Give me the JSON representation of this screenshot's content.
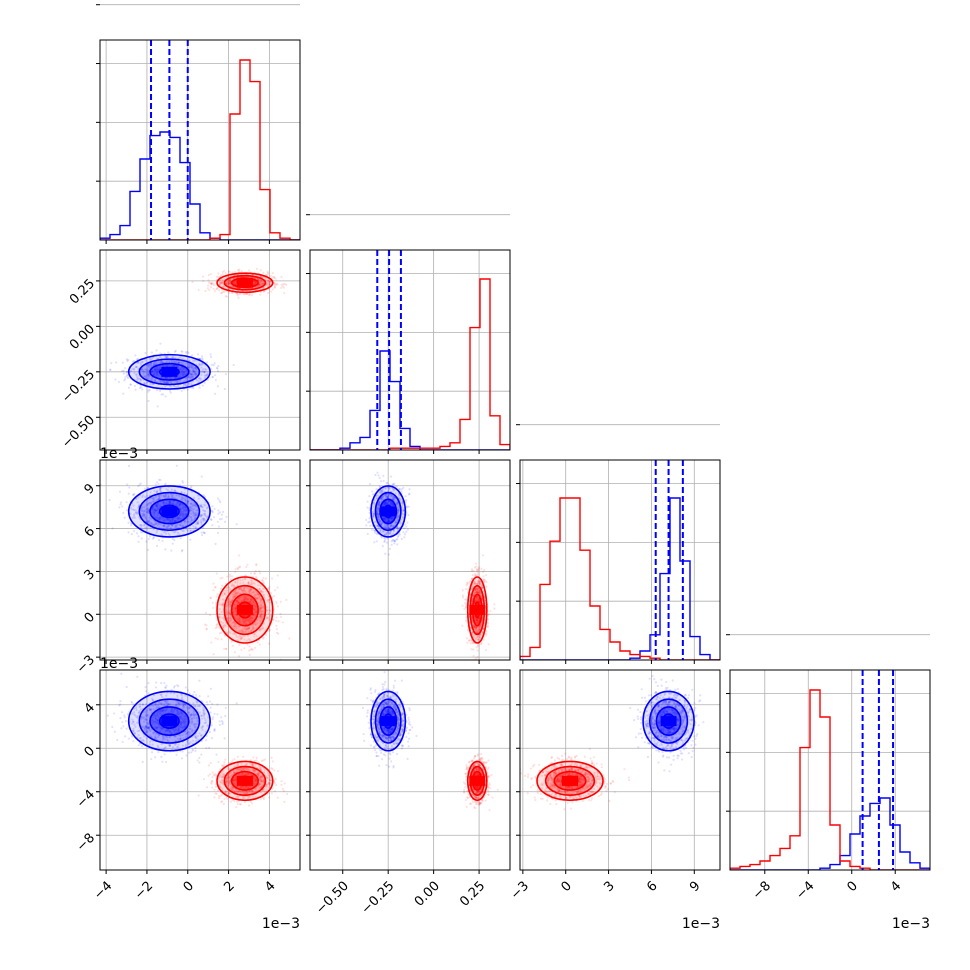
{
  "chart_data": {
    "type": "corner",
    "colors": {
      "series_a": "#0000ff",
      "series_b": "#ff0000",
      "grid": "#b0b0b0"
    },
    "parameters": [
      {
        "range": [
          -4.3,
          5.5
        ],
        "ticks": [
          -4,
          -2,
          0,
          2,
          4
        ],
        "tick_labels": [
          "−4",
          "−2",
          "0",
          "2",
          "4"
        ],
        "offset_label": "1e−3"
      },
      {
        "range": [
          -0.68,
          0.42
        ],
        "ticks": [
          -0.5,
          -0.25,
          0.0,
          0.25
        ],
        "tick_labels": [
          "−0.50",
          "−0.25",
          "0.00",
          "0.25"
        ],
        "offset_label": ""
      },
      {
        "range": [
          -3.2,
          10.8
        ],
        "ticks": [
          -3,
          0,
          3,
          6,
          9
        ],
        "tick_labels": [
          "−3",
          "0",
          "3",
          "6",
          "9"
        ],
        "offset_label": "1e−3"
      },
      {
        "range": [
          -11.2,
          7.2
        ],
        "ticks": [
          -8,
          -4,
          0,
          4
        ],
        "tick_labels": [
          "−8",
          "−4",
          "0",
          "4"
        ],
        "offset_label": "1e−3"
      }
    ],
    "series": [
      {
        "color": "series_a",
        "mean": [
          -0.9,
          -0.25,
          7.2,
          2.5
        ],
        "sd": [
          0.95,
          0.045,
          0.85,
          1.3
        ]
      },
      {
        "color": "series_b",
        "mean": [
          2.8,
          0.24,
          0.3,
          -3.0
        ],
        "sd": [
          0.65,
          0.025,
          1.1,
          0.85
        ]
      }
    ],
    "quantile_lines": [
      [
        -1.8,
        -0.9,
        0.0
      ],
      [
        -0.31,
        -0.245,
        -0.18
      ],
      [
        6.3,
        7.2,
        8.2
      ],
      [
        1.0,
        2.5,
        3.8
      ]
    ],
    "histograms": [
      {
        "edges": [
          -4.3,
          -3.81,
          -3.32,
          -2.83,
          -2.34,
          -1.85,
          -1.36,
          -0.87,
          -0.38,
          0.11,
          0.6,
          1.09,
          1.58,
          2.07,
          2.56,
          3.05,
          3.54,
          4.03,
          4.52,
          5.01,
          5.5
        ],
        "series_a": [
          0.01,
          0.03,
          0.08,
          0.27,
          0.45,
          0.58,
          0.6,
          0.57,
          0.43,
          0.2,
          0.04,
          0.01,
          0,
          0,
          0,
          0,
          0,
          0,
          0,
          0
        ],
        "series_b": [
          0,
          0,
          0,
          0,
          0,
          0,
          0,
          0,
          0,
          0,
          0,
          0.01,
          0.03,
          0.7,
          1.0,
          0.88,
          0.28,
          0.04,
          0.01,
          0
        ]
      },
      {
        "edges": [
          -0.68,
          -0.625,
          -0.57,
          -0.515,
          -0.46,
          -0.405,
          -0.35,
          -0.295,
          -0.24,
          -0.185,
          -0.13,
          -0.075,
          -0.02,
          0.035,
          0.09,
          0.145,
          0.2,
          0.255,
          0.31,
          0.365,
          0.42
        ],
        "series_a": [
          0,
          0,
          0,
          0.01,
          0.04,
          0.07,
          0.22,
          0.55,
          0.38,
          0.12,
          0.02,
          0,
          0,
          0,
          0,
          0,
          0,
          0,
          0,
          0
        ],
        "series_b": [
          0,
          0,
          0,
          0,
          0,
          0,
          0,
          0,
          0.01,
          0.01,
          0.01,
          0.01,
          0.01,
          0.02,
          0.04,
          0.17,
          0.68,
          0.95,
          0.19,
          0.03
        ]
      },
      {
        "edges": [
          -3.2,
          -2.5,
          -1.8,
          -1.1,
          -0.4,
          0.3,
          1.0,
          1.7,
          2.4,
          3.1,
          3.8,
          4.5,
          5.2,
          5.9,
          6.6,
          7.3,
          8.0,
          8.7,
          9.4,
          10.1,
          10.8
        ],
        "series_a": [
          0,
          0,
          0,
          0,
          0,
          0,
          0,
          0,
          0,
          0,
          0,
          0.01,
          0.05,
          0.14,
          0.48,
          0.9,
          0.55,
          0.13,
          0.03,
          0
        ],
        "series_b": [
          0.02,
          0.07,
          0.42,
          0.66,
          0.9,
          0.9,
          0.61,
          0.3,
          0.17,
          0.1,
          0.05,
          0.03,
          0.02,
          0.01,
          0,
          0,
          0,
          0,
          0,
          0
        ]
      },
      {
        "edges": [
          -11.2,
          -10.28,
          -9.36,
          -8.44,
          -7.52,
          -6.6,
          -5.68,
          -4.76,
          -3.84,
          -2.92,
          -2.0,
          -1.08,
          -0.16,
          0.76,
          1.68,
          2.6,
          3.52,
          4.44,
          5.36,
          6.28,
          7.2
        ],
        "series_a": [
          0,
          0,
          0,
          0,
          0,
          0,
          0,
          0,
          0,
          0.01,
          0.03,
          0.08,
          0.2,
          0.3,
          0.37,
          0.4,
          0.25,
          0.1,
          0.04,
          0.01
        ],
        "series_b": [
          0.01,
          0.02,
          0.03,
          0.05,
          0.08,
          0.12,
          0.19,
          0.68,
          1.0,
          0.85,
          0.25,
          0.05,
          0.02,
          0.01,
          0,
          0,
          0,
          0,
          0,
          0
        ]
      }
    ]
  }
}
